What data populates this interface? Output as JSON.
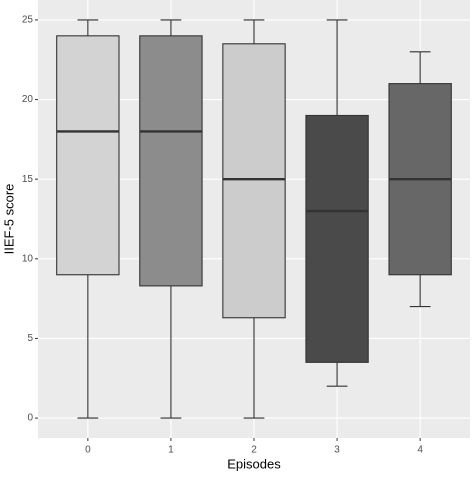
{
  "chart_data": {
    "type": "boxplot",
    "x_label": "Episodes",
    "y_label": "IIEF-5 score",
    "categories": [
      "0",
      "1",
      "2",
      "3",
      "4"
    ],
    "boxes": [
      {
        "min": 0,
        "q1": 9,
        "median": 18,
        "q3": 24,
        "max": 25,
        "color": "#d3d3d3"
      },
      {
        "min": 0,
        "q1": 8.3,
        "median": 18,
        "q3": 24,
        "max": 25,
        "color": "#8c8c8c"
      },
      {
        "min": 0,
        "q1": 6.3,
        "median": 15,
        "q3": 23.5,
        "max": 25,
        "color": "#cccccc"
      },
      {
        "min": 2,
        "q1": 3.5,
        "median": 13,
        "q3": 19,
        "max": 25,
        "color": "#4a4a4a"
      },
      {
        "min": 7,
        "q1": 9,
        "median": 15,
        "q3": 21,
        "max": 23,
        "color": "#676767"
      }
    ],
    "ylim": [
      -1.25,
      26.25
    ],
    "yticks": [
      0,
      5,
      10,
      15,
      20,
      25
    ],
    "grid": true
  }
}
